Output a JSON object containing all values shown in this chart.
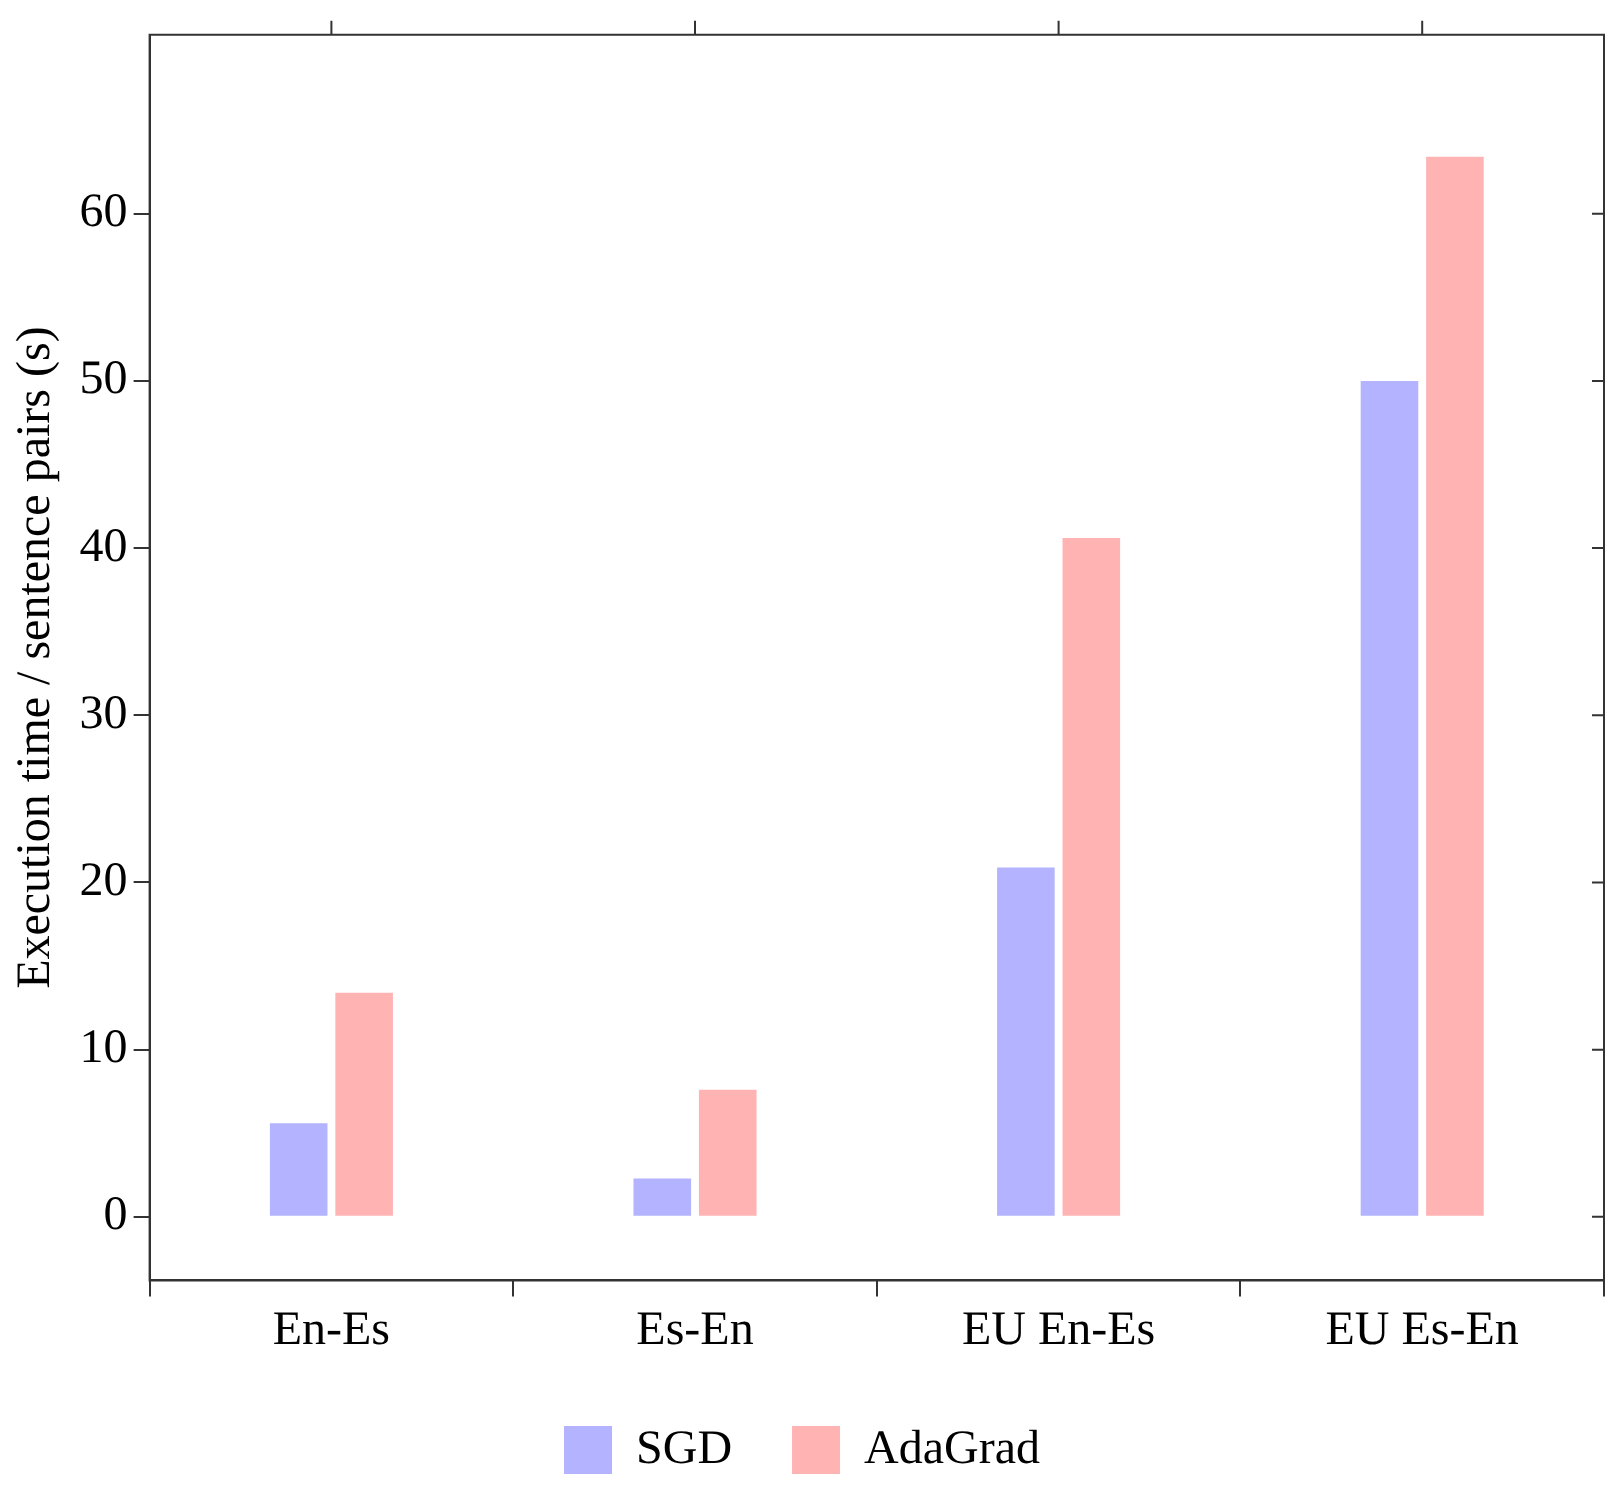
{
  "chart_data": {
    "type": "bar",
    "ylabel": "Execution time / sentence pairs (s)",
    "categories": [
      "En-Es",
      "Es-En",
      "EU En-Es",
      "EU Es-En"
    ],
    "series": [
      {
        "name": "SGD",
        "color": "#b3b3ff",
        "values": [
          5.6,
          2.3,
          20.9,
          50
        ]
      },
      {
        "name": "AdaGrad",
        "color": "#ffb3b3",
        "values": [
          13.4,
          7.6,
          40.6,
          63.4
        ]
      }
    ],
    "ylim": [
      -3.8,
      70.7
    ],
    "yticks": [
      0,
      10,
      20,
      30,
      40,
      50,
      60
    ],
    "grid": false,
    "legend": "bottom"
  }
}
